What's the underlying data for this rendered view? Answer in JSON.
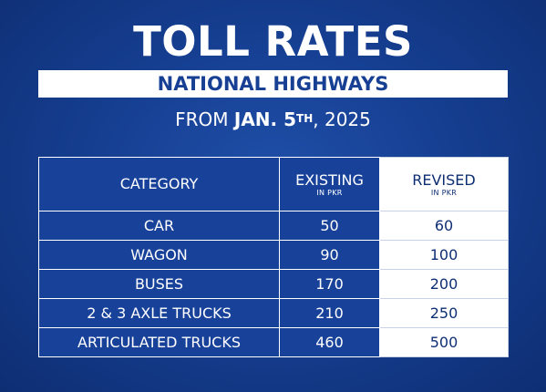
{
  "title": "TOLL RATES",
  "subtitle": "NATIONAL HIGHWAYS",
  "effective": {
    "prefix": "FROM",
    "date_bold": "JAN. 5",
    "ordinal": "TH",
    "suffix": ", 2025"
  },
  "table": {
    "headers": {
      "category": "CATEGORY",
      "existing": "EXISTING",
      "existing_unit": "IN PKR",
      "revised": "REVISED",
      "revised_unit": "IN PKR"
    },
    "rows": [
      {
        "category": "CAR",
        "existing": "50",
        "revised": "60"
      },
      {
        "category": "WAGON",
        "existing": "90",
        "revised": "100"
      },
      {
        "category": "BUSES",
        "existing": "170",
        "revised": "200"
      },
      {
        "category": "2 & 3 AXLE TRUCKS",
        "existing": "210",
        "revised": "250"
      },
      {
        "category": "ARTICULATED TRUCKS",
        "existing": "460",
        "revised": "500"
      }
    ]
  },
  "colors": {
    "background": "#163f92",
    "accent_text": "#173f93",
    "white": "#ffffff"
  }
}
